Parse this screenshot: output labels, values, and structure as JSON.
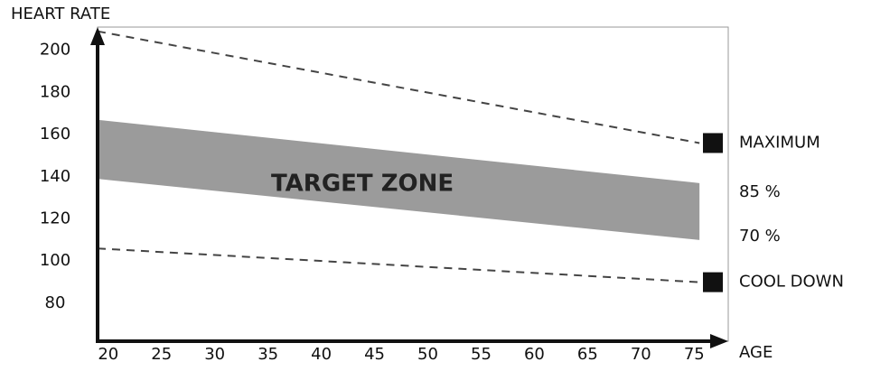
{
  "chart_data": {
    "type": "line",
    "y_label": "HEART RATE",
    "x_label": "AGE",
    "xlim": [
      19,
      78.2
    ],
    "ylim": [
      62,
      211
    ],
    "xticks": [
      20,
      25,
      30,
      35,
      40,
      45,
      50,
      55,
      60,
      65,
      70,
      75
    ],
    "yticks": [
      80,
      100,
      120,
      140,
      160,
      180,
      200
    ],
    "series": [
      {
        "name": "MAXIMUM",
        "color": "#444444",
        "dashed": true,
        "x": [
          19,
          75.5
        ],
        "values": [
          209,
          156
        ]
      },
      {
        "name": "COOL DOWN",
        "color": "#444444",
        "dashed": true,
        "x": [
          19,
          75.5
        ],
        "values": [
          106,
          90
        ]
      }
    ],
    "band": {
      "label": "TARGET ZONE",
      "color": "#9b9b9b",
      "x": [
        19,
        75.5
      ],
      "upper": [
        167,
        137
      ],
      "lower": [
        139,
        110
      ],
      "upper_label": "85 %",
      "lower_label": "70 %"
    }
  }
}
